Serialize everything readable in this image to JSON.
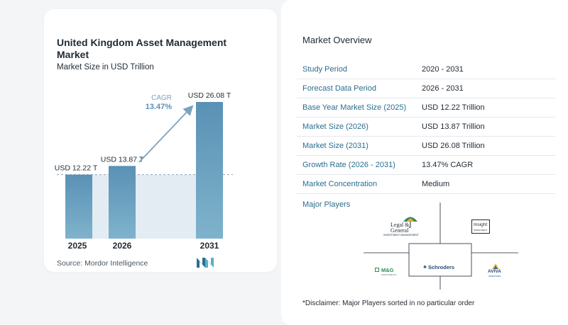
{
  "chart_data": {
    "type": "bar",
    "title": "United Kingdom Asset Management Market",
    "subtitle": "Market Size in USD Trillion",
    "categories": [
      "2025",
      "2026",
      "2031"
    ],
    "values": [
      12.22,
      13.87,
      26.08
    ],
    "value_labels": [
      "USD 12.22 T",
      "USD 13.87 T",
      "USD 26.08 T"
    ],
    "annotation": {
      "label": "CAGR",
      "value": "13.47%"
    },
    "ylim": [
      0,
      26.08
    ],
    "grid": false,
    "colors": {
      "bar_top": "#5a91b5",
      "bar_bottom": "#7fb3cc",
      "shade": "#e3ecf3",
      "arrow": "#7aa3c0",
      "cagr_label": "#7aa3c0",
      "cagr_value": "#5a91b5"
    }
  },
  "source": "Source:  Mordor Intelligence",
  "overview": {
    "title": "Market Overview",
    "rows": [
      {
        "key": "Study Period",
        "value": "2020 - 2031"
      },
      {
        "key": "Forecast Data Period",
        "value": "2026 - 2031"
      },
      {
        "key": "Base Year Market Size (2025)",
        "value": "USD 12.22 Trillion"
      },
      {
        "key": "Market Size (2026)",
        "value": "USD 13.87 Trillion"
      },
      {
        "key": "Market Size (2031)",
        "value": "USD 26.08 Trillion"
      },
      {
        "key": "Growth Rate (2026 - 2031)",
        "value": "13.47% CAGR"
      },
      {
        "key": "Market Concentration",
        "value": "Medium"
      }
    ]
  },
  "players": {
    "title": "Major Players",
    "logos": [
      {
        "name": "Legal & General",
        "sub": "INVESTMENT MANAGEMENT",
        "icon": "umbrella-icon"
      },
      {
        "name": "Insight",
        "sub": "INVESTMENT",
        "icon": "insight-logo"
      },
      {
        "name": "M&G",
        "sub": "INVESTMENTS",
        "icon": "mg-logo"
      },
      {
        "name": "Schroders",
        "icon": "schroders-logo"
      },
      {
        "name": "AVIVA",
        "sub": "INVESTORS",
        "icon": "aviva-logo"
      }
    ]
  },
  "disclaimer": "*Disclaimer: Major Players sorted in no particular order"
}
